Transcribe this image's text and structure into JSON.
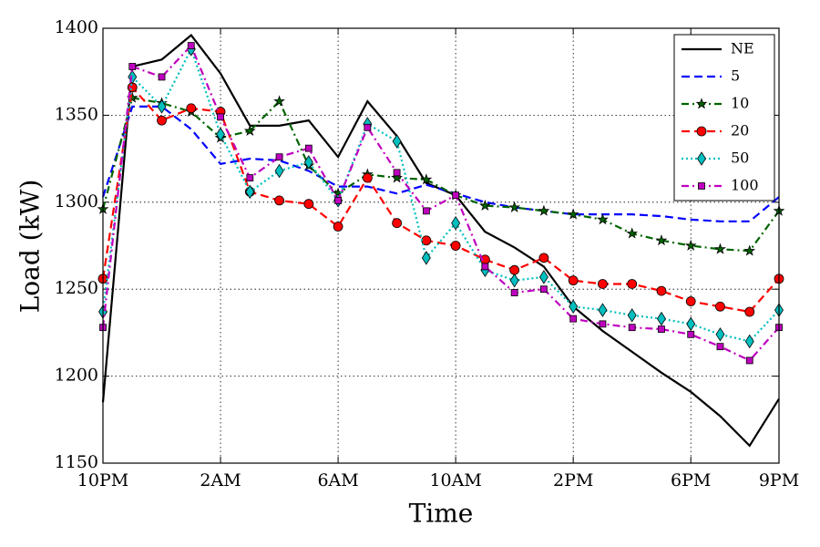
{
  "chart_data": {
    "type": "line",
    "x_label": "Time",
    "y_label": "Load (kW)",
    "categories": [
      "10PM",
      null,
      null,
      null,
      "2AM",
      null,
      null,
      null,
      "6AM",
      null,
      null,
      null,
      "10AM",
      null,
      null,
      null,
      "2PM",
      null,
      null,
      null,
      "6PM",
      null,
      null,
      "9PM"
    ],
    "ylim": [
      1150,
      1400
    ],
    "yticks": [
      1150,
      1200,
      1250,
      1300,
      1350,
      1400
    ],
    "grid": true,
    "legend": "upper right",
    "series": [
      {
        "name": "NE",
        "color": "#000000",
        "line_style": "solid",
        "marker": "none",
        "values": [
          1185,
          1378,
          1382,
          1396,
          1374,
          1344,
          1344,
          1347,
          1326,
          1358,
          1338,
          1311,
          1304,
          1283,
          1274,
          1263,
          1240,
          1226,
          1214,
          1202,
          1191,
          1177,
          1160,
          1187
        ]
      },
      {
        "name": "5",
        "color": "#0000ff",
        "line_style": "dashed",
        "marker": "none",
        "values": [
          1303,
          1355,
          1355,
          1342,
          1322,
          1325,
          1324,
          1318,
          1309,
          1309,
          1305,
          1310,
          1305,
          1300,
          1297,
          1295,
          1293,
          1293,
          1293,
          1292,
          1290,
          1289,
          1289,
          1303
        ]
      },
      {
        "name": "10",
        "color": "#006400",
        "line_style": "dashdot",
        "marker": "star",
        "values": [
          1296,
          1360,
          1357,
          1352,
          1337,
          1341,
          1358,
          1321,
          1305,
          1316,
          1314,
          1313,
          1304,
          1298,
          1297,
          1295,
          1293,
          1290,
          1282,
          1278,
          1275,
          1273,
          1272,
          1295
        ]
      },
      {
        "name": "20",
        "color": "#ff0000",
        "line_style": "dashed",
        "marker": "circle",
        "values": [
          1256,
          1366,
          1347,
          1354,
          1352,
          1306,
          1301,
          1299,
          1286,
          1314,
          1288,
          1278,
          1275,
          1267,
          1261,
          1268,
          1255,
          1253,
          1253,
          1249,
          1243,
          1240,
          1237,
          1256
        ]
      },
      {
        "name": "50",
        "color": "#00bfbf",
        "line_style": "dotted",
        "marker": "diamond",
        "values": [
          1237,
          1372,
          1355,
          1388,
          1339,
          1306,
          1318,
          1323,
          1301,
          1345,
          1335,
          1268,
          1288,
          1261,
          1255,
          1257,
          1240,
          1238,
          1235,
          1233,
          1230,
          1224,
          1220,
          1238
        ]
      },
      {
        "name": "100",
        "color": "#bf00bf",
        "line_style": "dashdot",
        "marker": "square",
        "values": [
          1228,
          1378,
          1372,
          1390,
          1349,
          1314,
          1326,
          1331,
          1301,
          1343,
          1317,
          1295,
          1304,
          1263,
          1248,
          1250,
          1233,
          1230,
          1228,
          1227,
          1224,
          1217,
          1209,
          1228
        ]
      }
    ]
  }
}
